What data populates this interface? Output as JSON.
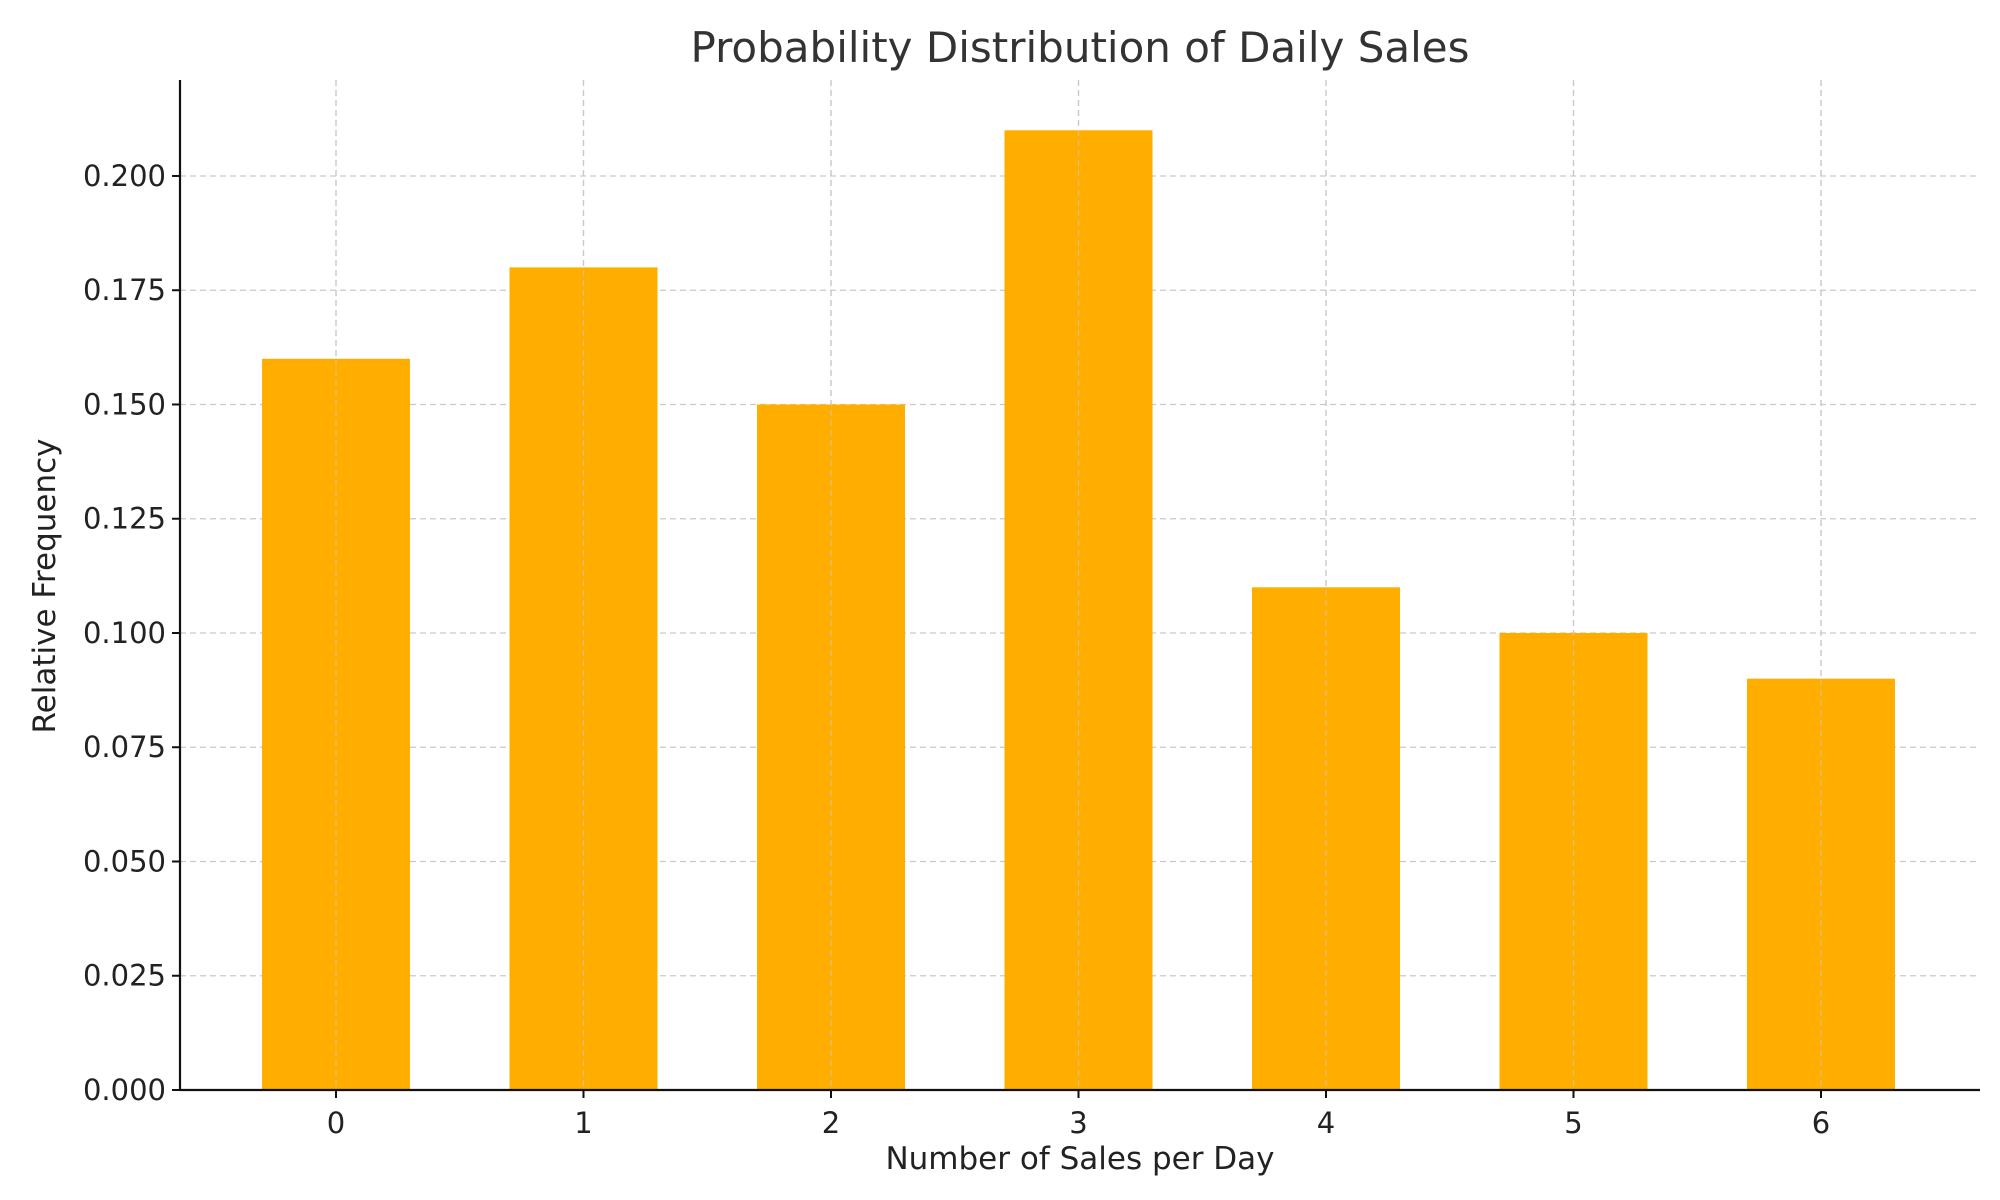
{
  "chart_data": {
    "type": "bar",
    "title": "Probability Distribution of Daily Sales",
    "xlabel": "Number of Sales per Day",
    "ylabel": "Relative Frequency",
    "categories": [
      "0",
      "1",
      "2",
      "3",
      "4",
      "5",
      "6"
    ],
    "values": [
      0.16,
      0.18,
      0.15,
      0.21,
      0.11,
      0.1,
      0.09
    ],
    "yticks": [
      "0.000",
      "0.025",
      "0.050",
      "0.075",
      "0.100",
      "0.125",
      "0.150",
      "0.175",
      "0.200"
    ],
    "ylim": [
      0,
      0.221
    ],
    "grid": true,
    "bar_color": "#FFAE00",
    "legend": "none"
  }
}
